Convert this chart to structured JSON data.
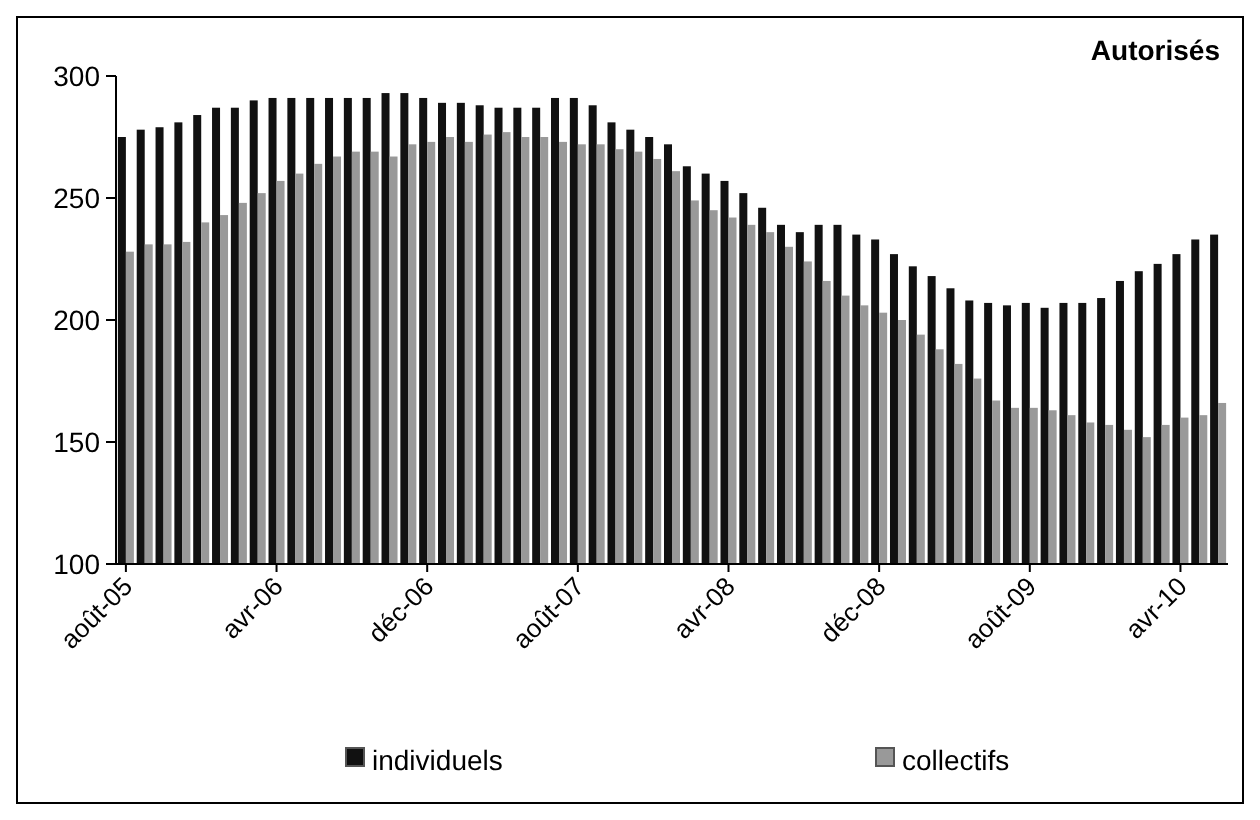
{
  "chart_data": {
    "type": "bar",
    "title": "Autorisés",
    "categories": [
      "août-05",
      null,
      null,
      null,
      null,
      null,
      null,
      null,
      "avr-06",
      null,
      null,
      null,
      null,
      null,
      null,
      null,
      "déc-06",
      null,
      null,
      null,
      null,
      null,
      null,
      null,
      "août-07",
      null,
      null,
      null,
      null,
      null,
      null,
      null,
      "avr-08",
      null,
      null,
      null,
      null,
      null,
      null,
      null,
      "déc-08",
      null,
      null,
      null,
      null,
      null,
      null,
      null,
      "août-09",
      null,
      null,
      null,
      null,
      null,
      null,
      null,
      "avr-10",
      null,
      null
    ],
    "series": [
      {
        "name": "individuels",
        "color": "#111111",
        "values": [
          275,
          278,
          279,
          281,
          284,
          287,
          287,
          290,
          291,
          291,
          291,
          291,
          291,
          291,
          293,
          293,
          291,
          289,
          289,
          288,
          287,
          287,
          287,
          291,
          291,
          288,
          281,
          278,
          275,
          272,
          263,
          260,
          257,
          252,
          246,
          239,
          236,
          239,
          239,
          235,
          233,
          227,
          222,
          218,
          213,
          208,
          207,
          206,
          207,
          205,
          207,
          207,
          209,
          216,
          220,
          223,
          227,
          233,
          235
        ]
      },
      {
        "name": "collectifs",
        "color": "#999999",
        "values": [
          228,
          231,
          231,
          232,
          240,
          243,
          248,
          252,
          257,
          260,
          264,
          267,
          269,
          269,
          267,
          272,
          273,
          275,
          273,
          276,
          277,
          275,
          275,
          273,
          272,
          272,
          270,
          269,
          266,
          261,
          249,
          245,
          242,
          239,
          236,
          230,
          224,
          216,
          210,
          206,
          203,
          200,
          194,
          188,
          182,
          176,
          167,
          164,
          164,
          163,
          161,
          158,
          157,
          155,
          152,
          157,
          160,
          161,
          166
        ]
      }
    ],
    "ylim": [
      100,
      300
    ],
    "yticks": [
      100,
      150,
      200,
      250,
      300
    ],
    "legend": "bottom"
  }
}
